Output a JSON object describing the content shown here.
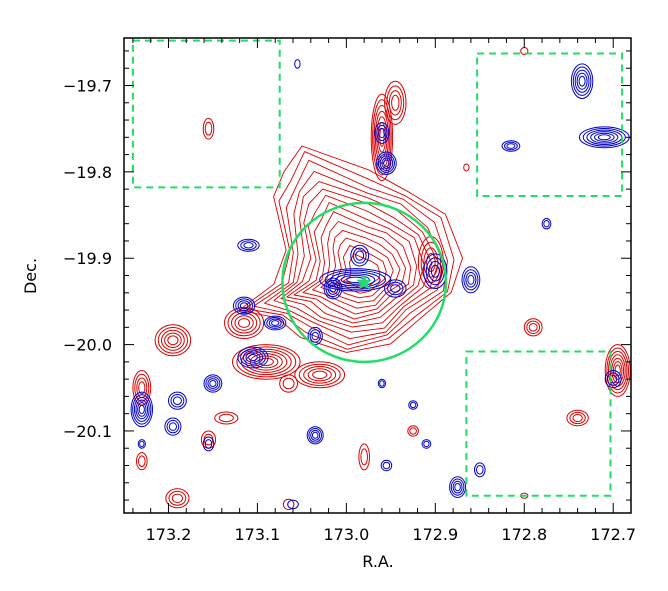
{
  "chart_data": {
    "type": "contour",
    "xlabel": "R.A.",
    "ylabel": "Dec.",
    "xlim": [
      173.25,
      172.68
    ],
    "ylim": [
      -20.195,
      -19.645
    ],
    "x_ticks": [
      173.2,
      173.1,
      173.0,
      172.9,
      172.8,
      172.7
    ],
    "x_tick_labels": [
      "173.2",
      "173.1",
      "173.0",
      "172.9",
      "172.8",
      "172.7"
    ],
    "y_ticks": [
      -19.7,
      -19.8,
      -19.9,
      -20.0,
      -20.1
    ],
    "y_tick_labels": [
      "−19.7",
      "−19.8",
      "−19.9",
      "−20.0",
      "−20.1"
    ],
    "colors": {
      "red": "#dd0000",
      "blue": "#0000cc",
      "green": "#22dd66"
    },
    "circle": {
      "center_ra": 172.98,
      "center_dec": -19.928,
      "radius_deg": 0.092,
      "color": "#22dd66"
    },
    "center_marker": {
      "ra": 172.98,
      "dec": -19.928,
      "symbol": "star",
      "color": "#22dd66"
    },
    "dashed_boxes": [
      {
        "ra_min": 173.075,
        "ra_max": 173.24,
        "dec_min": -19.818,
        "dec_max": -19.648
      },
      {
        "ra_min": 172.69,
        "ra_max": 172.853,
        "dec_min": -19.828,
        "dec_max": -19.663
      },
      {
        "ra_min": 172.703,
        "ra_max": 172.865,
        "dec_min": -20.175,
        "dec_max": -20.008
      }
    ],
    "red_main": {
      "center": [
        172.98,
        -19.92
      ],
      "outline": [
        [
          173.05,
          -19.77
        ],
        [
          172.975,
          -19.8
        ],
        [
          172.93,
          -19.82
        ],
        [
          172.89,
          -19.85
        ],
        [
          172.87,
          -19.9
        ],
        [
          172.88,
          -19.94
        ],
        [
          172.92,
          -19.97
        ],
        [
          172.95,
          -20.0
        ],
        [
          173.0,
          -20.01
        ],
        [
          173.05,
          -19.99
        ],
        [
          173.08,
          -19.97
        ],
        [
          173.12,
          -19.96
        ],
        [
          173.08,
          -19.93
        ],
        [
          173.07,
          -19.89
        ],
        [
          173.08,
          -19.83
        ],
        [
          173.07,
          -19.8
        ]
      ],
      "levels": 14
    },
    "red_blobs": [
      {
        "ra": 172.96,
        "dec": -19.76,
        "rx": 0.012,
        "ry": 0.05,
        "n": 7
      },
      {
        "ra": 172.945,
        "dec": -19.72,
        "rx": 0.012,
        "ry": 0.025,
        "n": 4
      },
      {
        "ra": 173.09,
        "dec": -20.02,
        "rx": 0.038,
        "ry": 0.02,
        "n": 7
      },
      {
        "ra": 173.03,
        "dec": -20.035,
        "rx": 0.028,
        "ry": 0.015,
        "n": 5
      },
      {
        "ra": 173.115,
        "dec": -19.975,
        "rx": 0.022,
        "ry": 0.018,
        "n": 5
      },
      {
        "ra": 173.195,
        "dec": -19.995,
        "rx": 0.02,
        "ry": 0.018,
        "n": 5
      },
      {
        "ra": 173.23,
        "dec": -20.05,
        "rx": 0.01,
        "ry": 0.02,
        "n": 4
      },
      {
        "ra": 172.695,
        "dec": -20.03,
        "rx": 0.014,
        "ry": 0.03,
        "n": 7
      },
      {
        "ra": 172.79,
        "dec": -19.98,
        "rx": 0.01,
        "ry": 0.01,
        "n": 3
      },
      {
        "ra": 172.74,
        "dec": -20.085,
        "rx": 0.012,
        "ry": 0.009,
        "n": 3
      },
      {
        "ra": 173.19,
        "dec": -20.178,
        "rx": 0.013,
        "ry": 0.011,
        "n": 3
      },
      {
        "ra": 173.155,
        "dec": -20.11,
        "rx": 0.008,
        "ry": 0.01,
        "n": 2
      },
      {
        "ra": 173.135,
        "dec": -20.085,
        "rx": 0.013,
        "ry": 0.007,
        "n": 2
      },
      {
        "ra": 173.155,
        "dec": -19.75,
        "rx": 0.006,
        "ry": 0.012,
        "n": 2
      },
      {
        "ra": 173.065,
        "dec": -20.045,
        "rx": 0.01,
        "ry": 0.01,
        "n": 2
      },
      {
        "ra": 172.98,
        "dec": -20.13,
        "rx": 0.006,
        "ry": 0.015,
        "n": 2
      },
      {
        "ra": 172.925,
        "dec": -20.1,
        "rx": 0.006,
        "ry": 0.006,
        "n": 2
      },
      {
        "ra": 172.8,
        "dec": -20.175,
        "rx": 0.004,
        "ry": 0.003,
        "n": 1
      },
      {
        "ra": 172.865,
        "dec": -19.795,
        "rx": 0.003,
        "ry": 0.004,
        "n": 1
      },
      {
        "ra": 172.8,
        "dec": -19.66,
        "rx": 0.004,
        "ry": 0.004,
        "n": 1
      },
      {
        "ra": 173.23,
        "dec": -20.135,
        "rx": 0.006,
        "ry": 0.01,
        "n": 2
      },
      {
        "ra": 173.065,
        "dec": -20.185,
        "rx": 0.006,
        "ry": 0.006,
        "n": 1
      },
      {
        "ra": 172.905,
        "dec": -19.905,
        "rx": 0.014,
        "ry": 0.03,
        "n": 4
      }
    ],
    "blue_blobs": [
      {
        "ra": 172.955,
        "dec": -19.79,
        "rx": 0.011,
        "ry": 0.013,
        "n": 5
      },
      {
        "ra": 172.96,
        "dec": -19.755,
        "rx": 0.008,
        "ry": 0.012,
        "n": 3
      },
      {
        "ra": 172.99,
        "dec": -19.925,
        "rx": 0.04,
        "ry": 0.013,
        "n": 6
      },
      {
        "ra": 173.015,
        "dec": -19.935,
        "rx": 0.01,
        "ry": 0.012,
        "n": 4
      },
      {
        "ra": 172.985,
        "dec": -19.897,
        "rx": 0.01,
        "ry": 0.012,
        "n": 3
      },
      {
        "ra": 172.945,
        "dec": -19.935,
        "rx": 0.012,
        "ry": 0.01,
        "n": 3
      },
      {
        "ra": 172.9,
        "dec": -19.915,
        "rx": 0.013,
        "ry": 0.02,
        "n": 4
      },
      {
        "ra": 172.86,
        "dec": -19.925,
        "rx": 0.01,
        "ry": 0.015,
        "n": 4
      },
      {
        "ra": 173.11,
        "dec": -19.885,
        "rx": 0.012,
        "ry": 0.007,
        "n": 3
      },
      {
        "ra": 173.08,
        "dec": -19.975,
        "rx": 0.012,
        "ry": 0.008,
        "n": 4
      },
      {
        "ra": 173.115,
        "dec": -19.955,
        "rx": 0.012,
        "ry": 0.01,
        "n": 4
      },
      {
        "ra": 173.105,
        "dec": -20.015,
        "rx": 0.017,
        "ry": 0.012,
        "n": 5
      },
      {
        "ra": 173.15,
        "dec": -20.045,
        "rx": 0.01,
        "ry": 0.01,
        "n": 4
      },
      {
        "ra": 173.23,
        "dec": -20.075,
        "rx": 0.012,
        "ry": 0.02,
        "n": 6
      },
      {
        "ra": 173.19,
        "dec": -20.065,
        "rx": 0.01,
        "ry": 0.01,
        "n": 3
      },
      {
        "ra": 173.195,
        "dec": -20.095,
        "rx": 0.009,
        "ry": 0.01,
        "n": 3
      },
      {
        "ra": 173.035,
        "dec": -19.99,
        "rx": 0.008,
        "ry": 0.01,
        "n": 3
      },
      {
        "ra": 172.735,
        "dec": -19.695,
        "rx": 0.012,
        "ry": 0.02,
        "n": 5
      },
      {
        "ra": 172.71,
        "dec": -19.76,
        "rx": 0.028,
        "ry": 0.012,
        "n": 6
      },
      {
        "ra": 172.815,
        "dec": -19.77,
        "rx": 0.01,
        "ry": 0.006,
        "n": 3
      },
      {
        "ra": 172.775,
        "dec": -19.86,
        "rx": 0.005,
        "ry": 0.006,
        "n": 2
      },
      {
        "ra": 172.7,
        "dec": -20.04,
        "rx": 0.009,
        "ry": 0.01,
        "n": 3
      },
      {
        "ra": 173.035,
        "dec": -20.105,
        "rx": 0.009,
        "ry": 0.01,
        "n": 4
      },
      {
        "ra": 172.955,
        "dec": -20.14,
        "rx": 0.006,
        "ry": 0.006,
        "n": 2
      },
      {
        "ra": 172.925,
        "dec": -20.07,
        "rx": 0.005,
        "ry": 0.005,
        "n": 2
      },
      {
        "ra": 172.91,
        "dec": -20.115,
        "rx": 0.005,
        "ry": 0.005,
        "n": 2
      },
      {
        "ra": 172.875,
        "dec": -20.165,
        "rx": 0.009,
        "ry": 0.012,
        "n": 4
      },
      {
        "ra": 172.85,
        "dec": -20.145,
        "rx": 0.006,
        "ry": 0.008,
        "n": 2
      },
      {
        "ra": 173.155,
        "dec": -20.115,
        "rx": 0.006,
        "ry": 0.008,
        "n": 2
      },
      {
        "ra": 173.23,
        "dec": -20.115,
        "rx": 0.004,
        "ry": 0.005,
        "n": 2
      },
      {
        "ra": 172.96,
        "dec": -20.045,
        "rx": 0.004,
        "ry": 0.005,
        "n": 2
      },
      {
        "ra": 173.06,
        "dec": -20.185,
        "rx": 0.006,
        "ry": 0.005,
        "n": 1
      },
      {
        "ra": 173.055,
        "dec": -19.675,
        "rx": 0.003,
        "ry": 0.005,
        "n": 1
      }
    ]
  }
}
